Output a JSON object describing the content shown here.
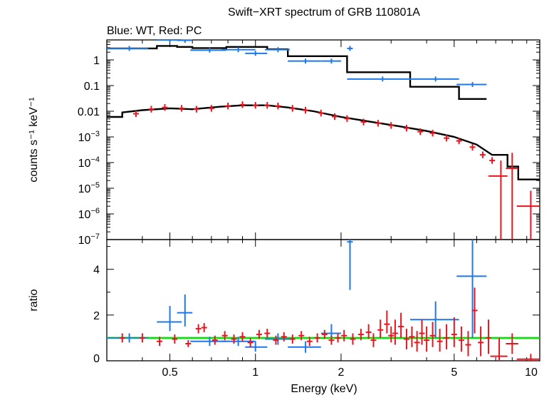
{
  "title": "Swift−XRT spectrum of GRB 110801A",
  "subtitle": "Blue: WT, Red: PC",
  "colors": {
    "wt": "#1f78e6",
    "pc": "#e8141e",
    "model": "#000000",
    "unity": "#00e600"
  },
  "chart_data": [
    {
      "type": "line",
      "panel": "spectrum",
      "ylabel": "counts s⁻¹ keV⁻¹",
      "xlabel": "",
      "xscale": "log",
      "yscale": "log",
      "xlim": [
        0.3,
        10
      ],
      "ylim": [
        1e-07,
        6
      ],
      "x_ticks": [
        {
          "value": 0.5,
          "label": "0.5"
        },
        {
          "value": 1,
          "label": "1"
        },
        {
          "value": 2,
          "label": "2"
        },
        {
          "value": 5,
          "label": "5"
        },
        {
          "value": 10,
          "label": "10"
        }
      ],
      "y_ticks": [
        {
          "value": 1,
          "label": "1"
        },
        {
          "value": 0.1,
          "label": "0.1"
        },
        {
          "value": 0.01,
          "label": "0.01"
        },
        {
          "value": 0.001,
          "base": "10",
          "exp": "−3"
        },
        {
          "value": 0.0001,
          "base": "10",
          "exp": "−4"
        },
        {
          "value": 1e-05,
          "base": "10",
          "exp": "−5"
        },
        {
          "value": 1e-06,
          "base": "10",
          "exp": "−6"
        },
        {
          "value": 1e-07,
          "base": "10",
          "exp": "−7"
        }
      ],
      "series": [
        {
          "key": "wt",
          "points": [
            {
              "x": 0.36,
              "xlo": 0.3,
              "xhi": 0.42,
              "y": 2.8
            },
            {
              "x": 0.5,
              "xlo": 0.45,
              "xhi": 0.55,
              "y": 6.0
            },
            {
              "x": 0.565,
              "xlo": 0.53,
              "xhi": 0.6,
              "y": 5.8
            },
            {
              "x": 0.69,
              "xlo": 0.59,
              "xhi": 0.79,
              "y": 2.4
            },
            {
              "x": 0.87,
              "xlo": 0.76,
              "xhi": 1.0,
              "y": 2.5
            },
            {
              "x": 1.0,
              "xlo": 0.92,
              "xhi": 1.1,
              "y": 1.8
            },
            {
              "x": 1.2,
              "xlo": 1.08,
              "xhi": 1.32,
              "y": 2.5
            },
            {
              "x": 1.5,
              "xlo": 1.3,
              "xhi": 1.7,
              "y": 0.9
            },
            {
              "x": 1.85,
              "xlo": 1.7,
              "xhi": 2.0,
              "y": 0.9
            },
            {
              "x": 2.15,
              "xlo": 2.1,
              "xhi": 2.2,
              "y": 2.8
            },
            {
              "x": 2.8,
              "xlo": 2.1,
              "xhi": 3.5,
              "y": 0.18
            },
            {
              "x": 4.3,
              "xlo": 3.5,
              "xhi": 5.2,
              "y": 0.18
            },
            {
              "x": 5.8,
              "xlo": 5.1,
              "xhi": 6.5,
              "y": 0.11
            }
          ]
        },
        {
          "key": "pc",
          "points": [
            {
              "x": 0.38,
              "y": 0.008
            },
            {
              "x": 0.43,
              "y": 0.012
            },
            {
              "x": 0.48,
              "y": 0.014
            },
            {
              "x": 0.55,
              "y": 0.013
            },
            {
              "x": 0.62,
              "y": 0.012
            },
            {
              "x": 0.7,
              "y": 0.013
            },
            {
              "x": 0.8,
              "y": 0.016
            },
            {
              "x": 0.9,
              "y": 0.018
            },
            {
              "x": 1.0,
              "y": 0.017
            },
            {
              "x": 1.1,
              "y": 0.017
            },
            {
              "x": 1.2,
              "y": 0.016
            },
            {
              "x": 1.35,
              "y": 0.013
            },
            {
              "x": 1.5,
              "y": 0.011
            },
            {
              "x": 1.7,
              "y": 0.0085
            },
            {
              "x": 1.9,
              "y": 0.0062
            },
            {
              "x": 2.1,
              "y": 0.0052
            },
            {
              "x": 2.4,
              "y": 0.0038
            },
            {
              "x": 2.7,
              "y": 0.0034
            },
            {
              "x": 3.0,
              "y": 0.0028
            },
            {
              "x": 3.4,
              "y": 0.0022
            },
            {
              "x": 3.8,
              "y": 0.0016
            },
            {
              "x": 4.2,
              "y": 0.0014
            },
            {
              "x": 4.7,
              "y": 0.0009
            },
            {
              "x": 5.2,
              "y": 0.0007
            },
            {
              "x": 5.8,
              "y": 0.0004
            },
            {
              "x": 6.3,
              "y": 0.0002
            },
            {
              "x": 6.8,
              "y": 0.00012
            },
            {
              "x": 7.3,
              "xlo": 6.6,
              "xhi": 7.7,
              "y": 3e-05
            },
            {
              "x": 8.0,
              "xlo": 7.6,
              "xhi": 8.4,
              "y": 6e-05
            },
            {
              "x": 9.3,
              "xlo": 8.3,
              "xhi": 10,
              "y": 2e-06
            }
          ]
        }
      ],
      "models": [
        {
          "key": "wt_model",
          "steps": [
            {
              "x": 0.3,
              "y": 2.8
            },
            {
              "x": 0.45,
              "y": 2.8
            },
            {
              "x": 0.45,
              "y": 3.5
            },
            {
              "x": 0.53,
              "y": 3.5
            },
            {
              "x": 0.53,
              "y": 3.2
            },
            {
              "x": 0.6,
              "y": 3.2
            },
            {
              "x": 0.6,
              "y": 2.9
            },
            {
              "x": 0.79,
              "y": 2.9
            },
            {
              "x": 0.79,
              "y": 3.2
            },
            {
              "x": 1.1,
              "y": 3.2
            },
            {
              "x": 1.1,
              "y": 2.6
            },
            {
              "x": 1.3,
              "y": 2.6
            },
            {
              "x": 1.3,
              "y": 1.4
            },
            {
              "x": 2.1,
              "y": 1.4
            },
            {
              "x": 2.1,
              "y": 0.33
            },
            {
              "x": 3.5,
              "y": 0.33
            },
            {
              "x": 3.5,
              "y": 0.09
            },
            {
              "x": 5.2,
              "y": 0.09
            },
            {
              "x": 5.2,
              "y": 0.03
            },
            {
              "x": 6.5,
              "y": 0.03
            }
          ]
        },
        {
          "key": "pc_model",
          "steps": [
            {
              "x": 0.3,
              "y": 0.006
            },
            {
              "x": 0.34,
              "y": 0.006
            },
            {
              "x": 0.34,
              "y": 0.009
            },
            {
              "x": 0.4,
              "y": 0.011
            },
            {
              "x": 0.5,
              "y": 0.013
            },
            {
              "x": 0.6,
              "y": 0.012
            },
            {
              "x": 0.75,
              "y": 0.015
            },
            {
              "x": 0.9,
              "y": 0.017
            },
            {
              "x": 1.1,
              "y": 0.017
            },
            {
              "x": 1.3,
              "y": 0.014
            },
            {
              "x": 1.6,
              "y": 0.01
            },
            {
              "x": 2.0,
              "y": 0.006
            },
            {
              "x": 2.5,
              "y": 0.004
            },
            {
              "x": 3.2,
              "y": 0.0026
            },
            {
              "x": 4.0,
              "y": 0.0017
            },
            {
              "x": 5.0,
              "y": 0.001
            },
            {
              "x": 6.0,
              "y": 0.0005
            },
            {
              "x": 6.8,
              "y": 0.0002
            },
            {
              "x": 7.7,
              "y": 0.0002
            },
            {
              "x": 7.7,
              "y": 7e-05
            },
            {
              "x": 8.4,
              "y": 7e-05
            },
            {
              "x": 8.4,
              "y": 2.2e-05
            },
            {
              "x": 10,
              "y": 2.2e-05
            }
          ]
        }
      ]
    },
    {
      "type": "scatter",
      "panel": "ratio",
      "ylabel": "ratio",
      "xlabel": "Energy (keV)",
      "xscale": "log",
      "xlim": [
        0.3,
        10
      ],
      "ylim": [
        0,
        5.3
      ],
      "x_ticks": [
        {
          "value": 0.5,
          "label": "0.5"
        },
        {
          "value": 1,
          "label": "1"
        },
        {
          "value": 2,
          "label": "2"
        },
        {
          "value": 5,
          "label": "5"
        },
        {
          "value": 10,
          "label": "10"
        }
      ],
      "y_ticks": [
        {
          "value": 0,
          "label": "0"
        },
        {
          "value": 2,
          "label": "2"
        },
        {
          "value": 4,
          "label": "4"
        }
      ],
      "unity": 1,
      "series": [
        {
          "key": "wt",
          "points": [
            {
              "x": 0.36,
              "xlo": 0.3,
              "xhi": 0.42,
              "y": 1.0,
              "ylo": 0.8,
              "yhi": 1.2
            },
            {
              "x": 0.5,
              "xlo": 0.45,
              "xhi": 0.55,
              "y": 1.7,
              "ylo": 1.3,
              "yhi": 2.4
            },
            {
              "x": 0.565,
              "xlo": 0.53,
              "xhi": 0.6,
              "y": 2.1,
              "ylo": 1.5,
              "yhi": 2.9
            },
            {
              "x": 0.69,
              "xlo": 0.59,
              "xhi": 0.79,
              "y": 0.85,
              "ylo": 0.65,
              "yhi": 1.05
            },
            {
              "x": 0.87,
              "xlo": 0.76,
              "xhi": 1.0,
              "y": 0.85,
              "ylo": 0.65,
              "yhi": 1.05
            },
            {
              "x": 1.0,
              "xlo": 0.92,
              "xhi": 1.1,
              "y": 0.6,
              "ylo": 0.4,
              "yhi": 0.85
            },
            {
              "x": 1.2,
              "xlo": 1.08,
              "xhi": 1.32,
              "y": 0.95,
              "ylo": 0.7,
              "yhi": 1.2
            },
            {
              "x": 1.5,
              "xlo": 1.3,
              "xhi": 1.7,
              "y": 0.6,
              "ylo": 0.35,
              "yhi": 0.85
            },
            {
              "x": 1.85,
              "xlo": 1.7,
              "xhi": 2.0,
              "y": 1.2,
              "ylo": 0.8,
              "yhi": 1.6
            },
            {
              "x": 2.15,
              "xlo": 2.1,
              "xhi": 2.2,
              "y": 5.2,
              "ylo": 3.1,
              "yhi": 5.3
            },
            {
              "x": 4.3,
              "xlo": 3.5,
              "xhi": 5.2,
              "y": 1.8,
              "ylo": 1.0,
              "yhi": 2.6
            },
            {
              "x": 5.8,
              "xlo": 5.1,
              "xhi": 6.5,
              "y": 3.7,
              "ylo": 1.0,
              "yhi": 5.3
            }
          ]
        },
        {
          "key": "pc",
          "points": [
            {
              "x": 0.34,
              "y": 1.0,
              "ylo": 0.8,
              "yhi": 1.2
            },
            {
              "x": 0.4,
              "y": 1.0,
              "ylo": 0.8,
              "yhi": 1.2
            },
            {
              "x": 0.46,
              "y": 0.85,
              "ylo": 0.65,
              "yhi": 1.05
            },
            {
              "x": 0.52,
              "y": 0.95,
              "ylo": 0.75,
              "yhi": 1.15
            },
            {
              "x": 0.58,
              "y": 0.75,
              "ylo": 0.6,
              "yhi": 0.9
            },
            {
              "x": 0.63,
              "y": 1.4,
              "ylo": 1.2,
              "yhi": 1.6
            },
            {
              "x": 0.66,
              "y": 1.45,
              "ylo": 1.25,
              "yhi": 1.65
            },
            {
              "x": 0.72,
              "y": 0.9,
              "ylo": 0.7,
              "yhi": 1.1
            },
            {
              "x": 0.78,
              "y": 1.1,
              "ylo": 0.9,
              "yhi": 1.3
            },
            {
              "x": 0.84,
              "y": 0.95,
              "ylo": 0.75,
              "yhi": 1.15
            },
            {
              "x": 0.9,
              "y": 1.05,
              "ylo": 0.85,
              "yhi": 1.25
            },
            {
              "x": 0.96,
              "y": 0.8,
              "ylo": 0.6,
              "yhi": 1.0
            },
            {
              "x": 1.03,
              "y": 1.15,
              "ylo": 0.95,
              "yhi": 1.35
            },
            {
              "x": 1.1,
              "y": 1.2,
              "ylo": 1.0,
              "yhi": 1.4
            },
            {
              "x": 1.18,
              "y": 0.9,
              "ylo": 0.7,
              "yhi": 1.1
            },
            {
              "x": 1.26,
              "y": 1.05,
              "ylo": 0.85,
              "yhi": 1.25
            },
            {
              "x": 1.35,
              "y": 0.95,
              "ylo": 0.75,
              "yhi": 1.15
            },
            {
              "x": 1.45,
              "y": 1.1,
              "ylo": 0.9,
              "yhi": 1.3
            },
            {
              "x": 1.55,
              "y": 0.85,
              "ylo": 0.65,
              "yhi": 1.05
            },
            {
              "x": 1.65,
              "y": 1.0,
              "ylo": 0.8,
              "yhi": 1.2
            },
            {
              "x": 1.75,
              "y": 1.15,
              "ylo": 0.95,
              "yhi": 1.35
            },
            {
              "x": 1.85,
              "y": 0.9,
              "ylo": 0.7,
              "yhi": 1.1
            },
            {
              "x": 1.95,
              "y": 1.0,
              "ylo": 0.8,
              "yhi": 1.2
            },
            {
              "x": 2.05,
              "y": 1.1,
              "ylo": 0.85,
              "yhi": 1.35
            },
            {
              "x": 2.2,
              "y": 0.95,
              "ylo": 0.7,
              "yhi": 1.2
            },
            {
              "x": 2.35,
              "y": 1.15,
              "ylo": 0.9,
              "yhi": 1.4
            },
            {
              "x": 2.5,
              "y": 1.25,
              "ylo": 0.95,
              "yhi": 1.6
            },
            {
              "x": 2.6,
              "y": 0.9,
              "ylo": 0.6,
              "yhi": 1.2
            },
            {
              "x": 2.75,
              "y": 1.35,
              "ylo": 1.0,
              "yhi": 1.8
            },
            {
              "x": 2.9,
              "y": 1.6,
              "ylo": 1.2,
              "yhi": 2.2
            },
            {
              "x": 3.0,
              "y": 1.1,
              "ylo": 0.8,
              "yhi": 1.5
            },
            {
              "x": 3.1,
              "y": 1.2,
              "ylo": 0.7,
              "yhi": 1.8
            },
            {
              "x": 3.25,
              "y": 1.5,
              "ylo": 1.0,
              "yhi": 2.1
            },
            {
              "x": 3.4,
              "y": 0.95,
              "ylo": 0.5,
              "yhi": 1.4
            },
            {
              "x": 3.55,
              "y": 1.05,
              "ylo": 0.6,
              "yhi": 1.5
            },
            {
              "x": 3.7,
              "y": 0.8,
              "ylo": 0.4,
              "yhi": 1.3
            },
            {
              "x": 3.85,
              "y": 1.2,
              "ylo": 0.7,
              "yhi": 1.8
            },
            {
              "x": 4.0,
              "y": 0.9,
              "ylo": 0.4,
              "yhi": 1.5
            },
            {
              "x": 4.2,
              "y": 1.1,
              "ylo": 0.6,
              "yhi": 1.7
            },
            {
              "x": 4.45,
              "y": 0.85,
              "ylo": 0.4,
              "yhi": 1.4
            },
            {
              "x": 4.7,
              "y": 1.0,
              "ylo": 0.5,
              "yhi": 1.6
            },
            {
              "x": 5.0,
              "y": 1.15,
              "ylo": 0.6,
              "yhi": 1.9
            },
            {
              "x": 5.3,
              "y": 0.9,
              "ylo": 0.4,
              "yhi": 1.5
            },
            {
              "x": 5.6,
              "y": 0.7,
              "ylo": 0.2,
              "yhi": 1.3
            },
            {
              "x": 5.9,
              "y": 2.2,
              "ylo": 1.2,
              "yhi": 3.2
            },
            {
              "x": 6.2,
              "y": 0.8,
              "ylo": 0.2,
              "yhi": 1.5
            },
            {
              "x": 6.6,
              "y": 1.0,
              "ylo": 0.3,
              "yhi": 1.8
            },
            {
              "x": 7.2,
              "xlo": 6.7,
              "xhi": 7.7,
              "y": 0.2,
              "ylo": 0.0,
              "yhi": 1.0
            },
            {
              "x": 8.0,
              "xlo": 7.6,
              "xhi": 8.4,
              "y": 0.75,
              "ylo": 0.3,
              "yhi": 1.2
            },
            {
              "x": 9.3,
              "xlo": 8.3,
              "xhi": 10,
              "y": 0.07,
              "ylo": 0.0,
              "yhi": 0.3
            }
          ]
        }
      ]
    }
  ]
}
